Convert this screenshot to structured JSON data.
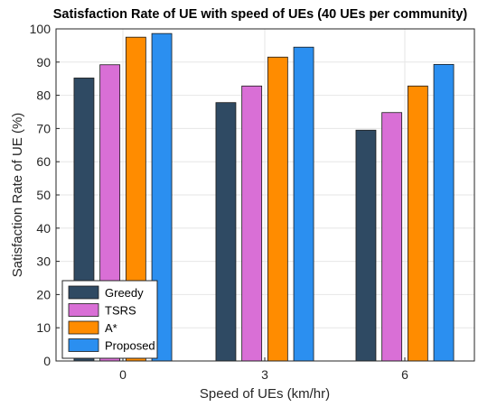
{
  "chart_data": {
    "type": "bar",
    "title": "Satisfaction Rate of UE with speed of UEs (40 UEs per community)",
    "xlabel": "Speed of UEs (km/hr)",
    "ylabel": "Satisfaction Rate of UE (%)",
    "categories": [
      "0",
      "3",
      "6"
    ],
    "ylim": [
      0,
      100
    ],
    "yticks": [
      "0",
      "10",
      "20",
      "30",
      "40",
      "50",
      "60",
      "70",
      "80",
      "90",
      "100"
    ],
    "grid": true,
    "legend_position": "bottom-left",
    "series": [
      {
        "name": "Greedy",
        "color": "#2f4a63",
        "values": [
          85.2,
          77.8,
          69.5
        ]
      },
      {
        "name": "TSRS",
        "color": "#d96fd6",
        "values": [
          89.2,
          82.8,
          74.8
        ]
      },
      {
        "name": "A*",
        "color": "#ff8c00",
        "values": [
          97.5,
          91.5,
          82.8
        ]
      },
      {
        "name": "Proposed",
        "color": "#2b8ff0",
        "values": [
          98.6,
          94.5,
          89.3
        ]
      }
    ]
  }
}
